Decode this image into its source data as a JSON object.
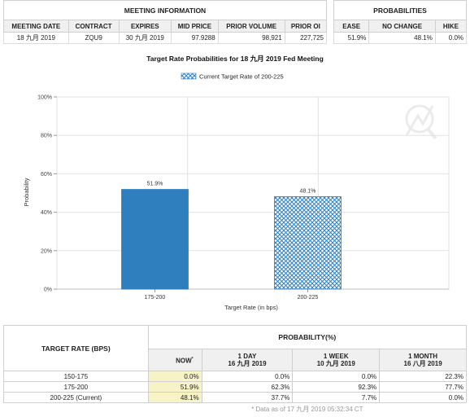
{
  "meeting_info": {
    "title": "MEETING INFORMATION",
    "columns": [
      "MEETING DATE",
      "CONTRACT",
      "EXPIRES",
      "MID PRICE",
      "PRIOR VOLUME",
      "PRIOR OI"
    ],
    "row": [
      "18 九月 2019",
      "ZQU9",
      "30 九月 2019",
      "97.9288",
      "98,921",
      "227,725"
    ]
  },
  "probabilities": {
    "title": "PROBABILITIES",
    "columns": [
      "EASE",
      "NO CHANGE",
      "HIKE"
    ],
    "row": [
      "51.9%",
      "48.1%",
      "0.0%"
    ]
  },
  "chart_data": {
    "type": "bar",
    "title": "Target Rate Probabilities for 18 九月 2019 Fed Meeting",
    "legend": "Current Target Rate of 200-225",
    "xlabel": "Target Rate (in bps)",
    "ylabel": "Probability",
    "categories": [
      "175-200",
      "200-225"
    ],
    "values": [
      51.9,
      48.1
    ],
    "value_labels": [
      "51.9%",
      "48.1%"
    ],
    "current_category": "200-225",
    "ylim": [
      0,
      100
    ],
    "yticks": [
      0,
      20,
      40,
      60,
      80,
      100
    ],
    "ytick_labels": [
      "0%",
      "20%",
      "40%",
      "60%",
      "80%",
      "100%"
    ],
    "colors": {
      "bar": "#2f7fbf",
      "hatch": "#2f7fbf"
    },
    "grid": true,
    "legend_position": "top-center"
  },
  "history": {
    "row_header": "TARGET RATE (BPS)",
    "prob_header": "PROBABILITY(%)",
    "now_label": "NOW",
    "now_mark": "*",
    "columns": [
      {
        "label": "1 DAY",
        "date": "16 九月 2019"
      },
      {
        "label": "1 WEEK",
        "date": "10 九月 2019"
      },
      {
        "label": "1 MONTH",
        "date": "16 八月 2019"
      }
    ],
    "rows": [
      {
        "rate": "150-175",
        "now": "0.0%",
        "day": "0.0%",
        "week": "0.0%",
        "month": "22.3%"
      },
      {
        "rate": "175-200",
        "now": "51.9%",
        "day": "62.3%",
        "week": "92.3%",
        "month": "77.7%"
      },
      {
        "rate": "200-225 (Current)",
        "now": "48.1%",
        "day": "37.7%",
        "week": "7.7%",
        "month": "0.0%"
      }
    ],
    "footnote": "* Data as of 17 九月 2019 05:32:34 CT"
  }
}
